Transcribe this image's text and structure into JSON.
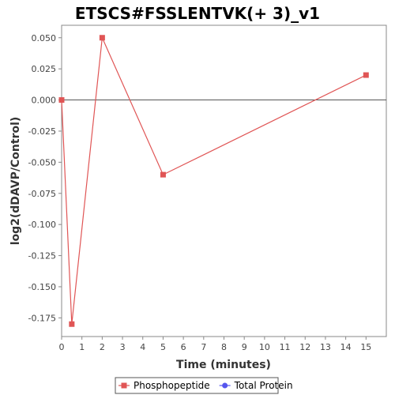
{
  "chart_data": {
    "type": "line",
    "title": "ETSCS#FSSLENTVK(+ 3)_v1",
    "xlabel": "Time (minutes)",
    "ylabel": "log2(dDAVP/Control)",
    "xlim": [
      0,
      16
    ],
    "ylim": [
      -0.19,
      0.06
    ],
    "x_ticks": [
      "0",
      "1",
      "2",
      "3",
      "4",
      "5",
      "6",
      "7",
      "8",
      "9",
      "10",
      "11",
      "12",
      "13",
      "14",
      "15"
    ],
    "y_ticks": [
      "0.050",
      "0.025",
      "0.000",
      "-0.025",
      "-0.050",
      "-0.075",
      "-0.100",
      "-0.125",
      "-0.150",
      "-0.175"
    ],
    "grid": false,
    "zero_line": true,
    "legend_position": "bottom",
    "series": [
      {
        "name": "Phosphopeptide",
        "color": "#e05555",
        "marker": "square",
        "x": [
          0,
          0.5,
          2,
          5,
          15
        ],
        "y": [
          0.0,
          -0.18,
          0.05,
          -0.06,
          0.02
        ]
      },
      {
        "name": "Total Protein",
        "color": "#5555ee",
        "marker": "circle",
        "x": [],
        "y": []
      }
    ]
  }
}
